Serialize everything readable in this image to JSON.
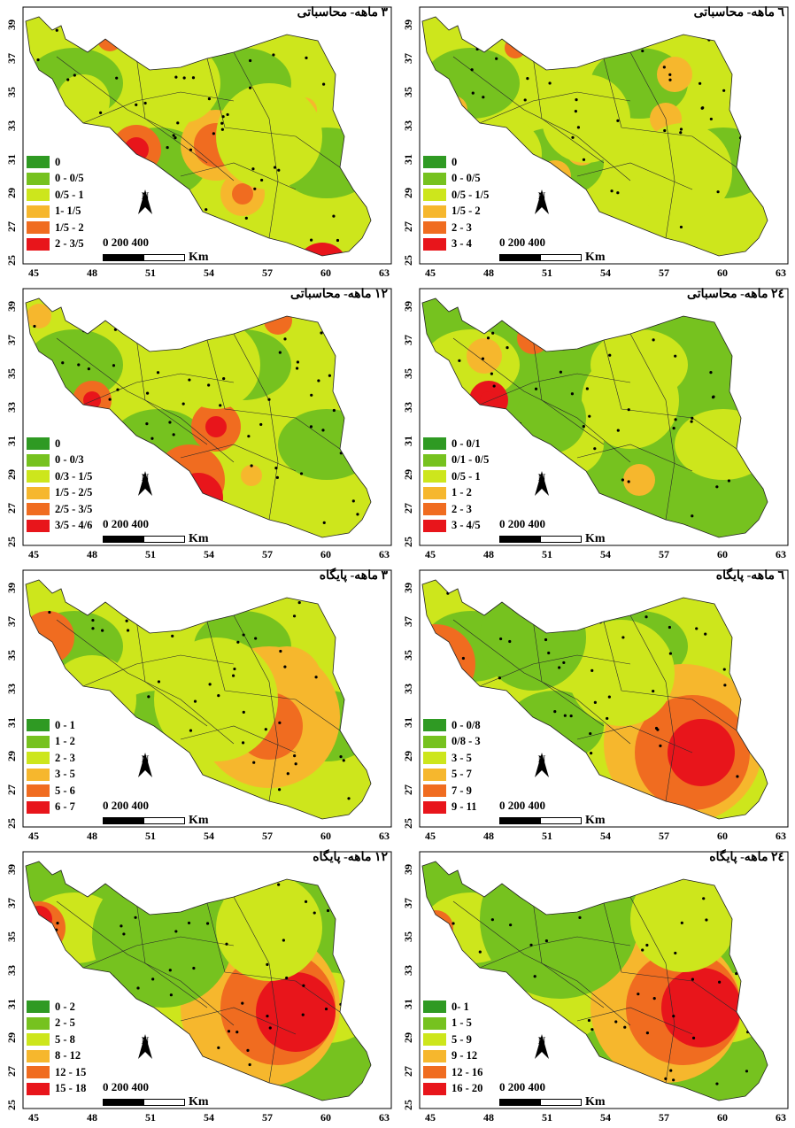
{
  "x_ticks": [
    "45",
    "48",
    "51",
    "54",
    "57",
    "60",
    "63"
  ],
  "y_ticks": [
    "39",
    "37",
    "35",
    "33",
    "31",
    "29",
    "27",
    "25"
  ],
  "scale_bar": {
    "numbers": "0   200  400",
    "unit": "Km"
  },
  "north_label": "N",
  "colors": [
    "#2f9a23",
    "#76c21f",
    "#cde61c",
    "#f6b72d",
    "#f06c20",
    "#e8151b"
  ],
  "panels": [
    {
      "title": "۳ ماهه- محاسباتی",
      "legend": [
        "0",
        "0 - 0/5",
        "0/5 - 1",
        "1- 1/5",
        "1/5 - 2",
        "2 - 3/5"
      ]
    },
    {
      "title": "٦ ماهه- محاسباتی",
      "legend": [
        "0",
        "0 - 0/5",
        "0/5 - 1/5",
        "1/5  - 2",
        "2 - 3",
        "3  - 4"
      ]
    },
    {
      "title": "١٢ ماهه- محاسباتی",
      "legend": [
        "0",
        "0 - 0/3",
        "0/3 - 1/5",
        "1/5  - 2/5",
        "2/5  - 3/5",
        "3/5  - 4/6"
      ]
    },
    {
      "title": "٢٤ ماهه- محاسباتی",
      "legend": [
        "0 - 0/1",
        "0/1 - 0/5",
        "0/5 - 1",
        "1 - 2",
        "2 - 3",
        "3 - 4/5"
      ]
    },
    {
      "title": "۳ ماهه- پایگاه",
      "legend": [
        "0 - 1",
        "1 - 2",
        "2 - 3",
        "3 - 5",
        "5 - 6",
        "6 - 7"
      ]
    },
    {
      "title": "٦ ماهه- پایگاه",
      "legend": [
        "0 - 0/8",
        "0/8 - 3",
        "3 - 5",
        "5 - 7",
        "7 - 9",
        "9 - 11"
      ]
    },
    {
      "title": "١٢ ماهه- پایگاه",
      "legend": [
        "0 - 2",
        "2 - 5",
        "5 - 8",
        "8 - 12",
        "12 - 15",
        "15 - 18"
      ]
    },
    {
      "title": "٢٤ ماهه- پایگاه",
      "legend": [
        "0- 1",
        "1 - 5",
        "5 - 9",
        "9 - 12",
        "12 - 16",
        "16 - 20"
      ]
    }
  ]
}
